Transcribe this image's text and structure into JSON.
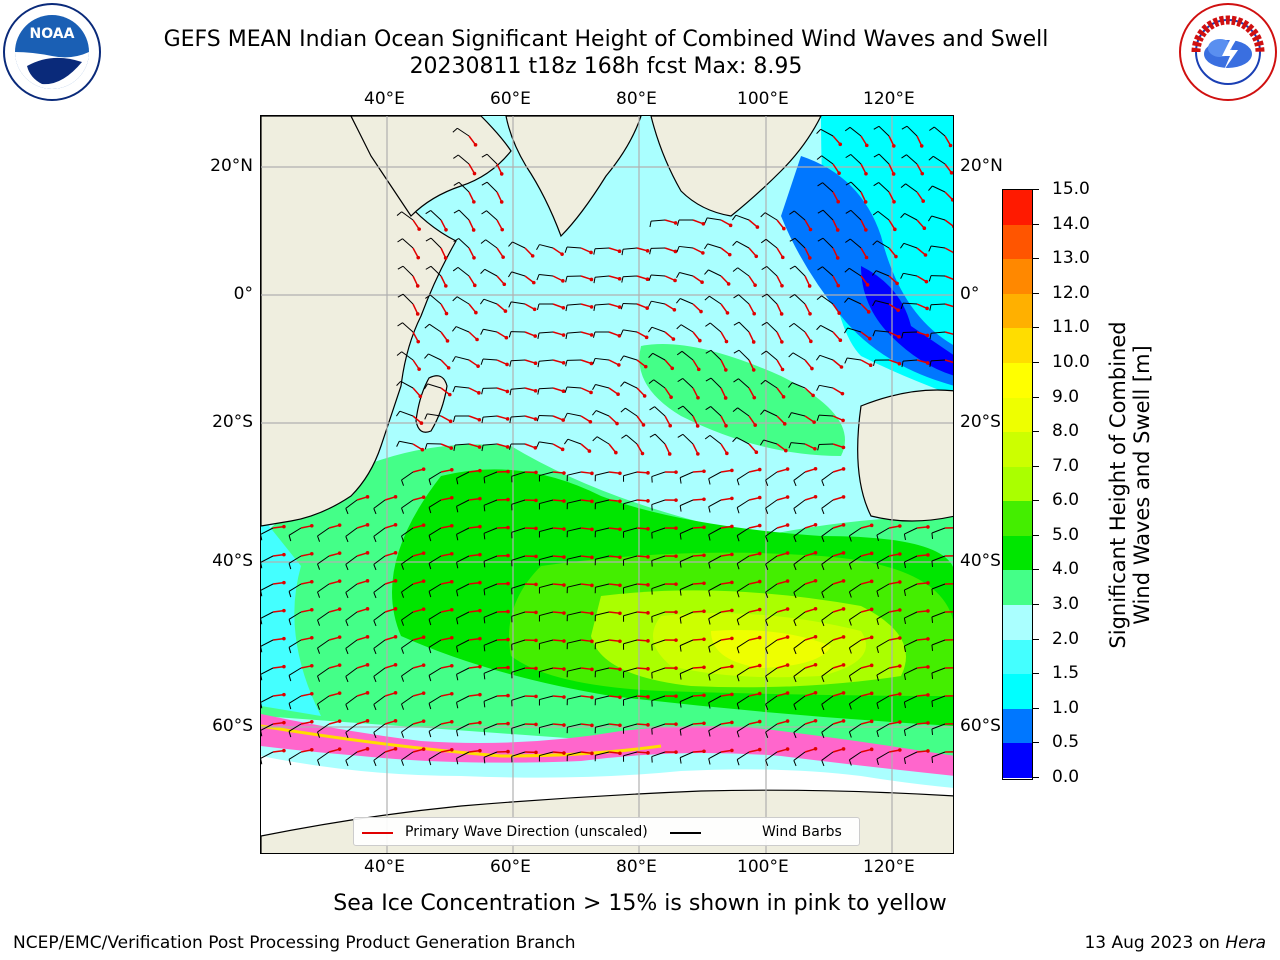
{
  "header": {
    "title_line1": "GEFS MEAN Indian Ocean Significant Height of Combined Wind Waves and Swell",
    "title_line2": "20230811 t18z 168h fcst   Max: 8.95"
  },
  "logos": {
    "noaa": {
      "icon": "noaa-logo",
      "text": "NOAA"
    },
    "nws": {
      "icon": "nws-logo",
      "text": "NATIONAL WEATHER SERVICE"
    }
  },
  "map": {
    "lon_ticks": [
      "40°E",
      "60°E",
      "80°E",
      "100°E",
      "120°E"
    ],
    "lat_ticks": [
      "20°N",
      "0°",
      "20°S",
      "40°S",
      "60°S"
    ],
    "land_color": "#efeedf",
    "gridlines": true
  },
  "legend": {
    "wave_label": "Primary Wave Direction (unscaled)",
    "barb_label": "Wind Barbs",
    "wave_color": "#e00000",
    "barb_color": "#000000"
  },
  "colorbar": {
    "label_line1": "Significant Height of Combined",
    "label_line2": "Wind Waves and Swell [m]",
    "ticks": [
      "0.0",
      "0.5",
      "1.0",
      "1.5",
      "2.0",
      "3.0",
      "4.0",
      "5.0",
      "6.0",
      "7.0",
      "8.0",
      "9.0",
      "10.0",
      "11.0",
      "12.0",
      "13.0",
      "14.0",
      "15.0"
    ],
    "colors": [
      "#0000ff",
      "#0077ff",
      "#00ffff",
      "#44ffff",
      "#aaffff",
      "#44ff88",
      "#00e600",
      "#44ee00",
      "#aaff00",
      "#ccff00",
      "#eeff00",
      "#ffff00",
      "#ffdd00",
      "#ffb000",
      "#ff8800",
      "#ff5500",
      "#ff1a00"
    ]
  },
  "notes": {
    "ice": "Sea Ice Concentration > 15% is shown in pink to yellow"
  },
  "footer": {
    "left": "NCEP/EMC/Verification Post Processing Product Generation Branch",
    "date": "13 Aug 2023 on",
    "host": "Hera"
  }
}
